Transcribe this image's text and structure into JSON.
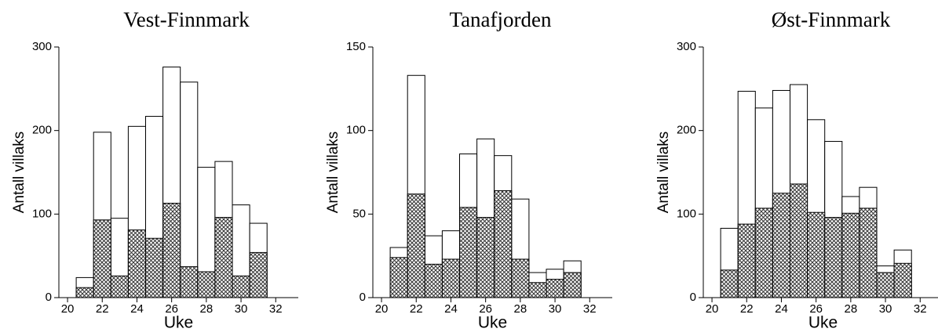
{
  "chart_data": [
    {
      "type": "bar",
      "title": "Vest-Finnmark",
      "x_label": "Uke",
      "y_label": "Antall villaks",
      "x": [
        21,
        22,
        23,
        24,
        25,
        26,
        27,
        28,
        29,
        30,
        31
      ],
      "series": [
        {
          "color": "#ffffff",
          "values": [
            24,
            198,
            95,
            205,
            217,
            276,
            258,
            156,
            163,
            111,
            89
          ]
        },
        {
          "color": "#555555",
          "pattern": "crosshatch",
          "values": [
            12,
            93,
            26,
            81,
            71,
            113,
            37,
            31,
            96,
            26,
            54
          ]
        }
      ],
      "xlim": [
        19.5,
        33.3
      ],
      "xticks": [
        20,
        22,
        24,
        26,
        28,
        30,
        32
      ],
      "ylim": [
        0,
        300
      ],
      "yticks": [
        0,
        100,
        200,
        300
      ]
    },
    {
      "type": "bar",
      "title": "Tanafjorden",
      "x_label": "Uke",
      "y_label": "Antall villaks",
      "x": [
        21,
        22,
        23,
        24,
        25,
        26,
        27,
        28,
        29,
        30,
        31
      ],
      "series": [
        {
          "color": "#ffffff",
          "values": [
            30,
            133,
            37,
            40,
            86,
            95,
            85,
            59,
            15,
            17,
            22
          ]
        },
        {
          "color": "#555555",
          "pattern": "crosshatch",
          "values": [
            24,
            62,
            20,
            23,
            54,
            48,
            64,
            23,
            9,
            11,
            15
          ]
        }
      ],
      "xlim": [
        19.5,
        33.3
      ],
      "xticks": [
        20,
        22,
        24,
        26,
        28,
        30,
        32
      ],
      "ylim": [
        0,
        150
      ],
      "yticks": [
        0,
        50,
        100,
        150
      ]
    },
    {
      "type": "bar",
      "title": "Øst-Finnmark",
      "x_label": "Uke",
      "y_label": "Antall villaks",
      "x": [
        21,
        22,
        23,
        24,
        25,
        26,
        27,
        28,
        29,
        30,
        31
      ],
      "series": [
        {
          "color": "#ffffff",
          "values": [
            83,
            247,
            227,
            248,
            255,
            213,
            187,
            121,
            132,
            38,
            57
          ]
        },
        {
          "color": "#555555",
          "pattern": "crosshatch",
          "values": [
            33,
            88,
            107,
            125,
            136,
            102,
            96,
            101,
            107,
            30,
            41
          ]
        }
      ],
      "xlim": [
        19.5,
        33.3
      ],
      "xticks": [
        20,
        22,
        24,
        26,
        28,
        30,
        32
      ],
      "ylim": [
        0,
        300
      ],
      "yticks": [
        0,
        100,
        200,
        300
      ]
    }
  ]
}
